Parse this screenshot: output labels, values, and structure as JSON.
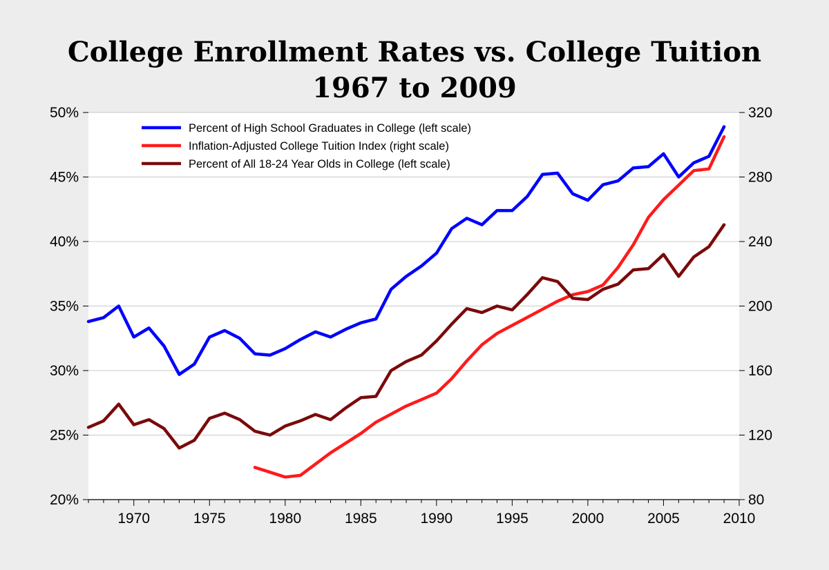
{
  "chart_data": {
    "type": "line",
    "title": "College Enrollment Rates vs. College Tuition",
    "subtitle": "1967 to 2009",
    "xlabel": "",
    "ylabel_left": "",
    "ylabel_right": "",
    "xlim": [
      1967,
      2010
    ],
    "ylim_left": [
      20,
      50
    ],
    "ylim_right": [
      80,
      320
    ],
    "x_ticks": [
      1970,
      1975,
      1980,
      1985,
      1990,
      1995,
      2000,
      2005,
      2010
    ],
    "y_left_ticks": [
      20,
      25,
      30,
      35,
      40,
      45,
      50
    ],
    "y_left_tick_labels": [
      "20%",
      "25%",
      "30%",
      "35%",
      "40%",
      "45%",
      "50%"
    ],
    "y_right_ticks": [
      80,
      120,
      160,
      200,
      240,
      280,
      320
    ],
    "y_right_tick_labels": [
      "80",
      "120",
      "160",
      "200",
      "240",
      "280",
      "320"
    ],
    "grid": "horizontal",
    "legend_position": "top-left",
    "series": [
      {
        "name": "Percent of High School Graduates in College (left scale)",
        "axis": "left",
        "color": "#0000ff",
        "x": [
          1967,
          1968,
          1969,
          1970,
          1971,
          1972,
          1973,
          1974,
          1975,
          1976,
          1977,
          1978,
          1979,
          1980,
          1981,
          1982,
          1983,
          1984,
          1985,
          1986,
          1987,
          1988,
          1989,
          1990,
          1991,
          1992,
          1993,
          1994,
          1995,
          1996,
          1997,
          1998,
          1999,
          2000,
          2001,
          2002,
          2003,
          2004,
          2005,
          2006,
          2007,
          2008,
          2009
        ],
        "y": [
          33.8,
          34.1,
          35.0,
          32.6,
          33.3,
          31.9,
          29.7,
          30.5,
          32.6,
          33.1,
          32.5,
          31.3,
          31.2,
          31.7,
          32.4,
          33.0,
          32.6,
          33.2,
          33.7,
          34.0,
          36.3,
          37.3,
          38.1,
          39.1,
          41.0,
          41.8,
          41.3,
          42.4,
          42.4,
          43.5,
          45.2,
          45.3,
          43.7,
          43.2,
          44.4,
          44.7,
          45.7,
          45.8,
          46.8,
          45.0,
          46.1,
          46.6,
          48.9
        ]
      },
      {
        "name": "Inflation-Adjusted College Tuition Index (right scale)",
        "axis": "right",
        "color": "#ff1a1a",
        "x": [
          1978,
          1979,
          1980,
          1981,
          1982,
          1983,
          1984,
          1985,
          1986,
          1987,
          1988,
          1989,
          1990,
          1991,
          1992,
          1993,
          1994,
          1995,
          1996,
          1997,
          1998,
          1999,
          2000,
          2001,
          2002,
          2003,
          2004,
          2005,
          2006,
          2007,
          2008,
          2009
        ],
        "y": [
          100,
          97,
          94,
          95,
          102,
          109,
          115,
          121,
          128,
          133,
          138,
          142,
          146,
          155,
          166,
          176,
          183,
          188,
          193,
          198,
          203,
          207,
          209,
          213,
          224,
          238,
          255,
          266,
          275,
          284,
          285,
          305
        ]
      },
      {
        "name": "Percent of All 18-24 Year Olds in College (left scale)",
        "axis": "left",
        "color": "#7a0a0a",
        "x": [
          1967,
          1968,
          1969,
          1970,
          1971,
          1972,
          1973,
          1974,
          1975,
          1976,
          1977,
          1978,
          1979,
          1980,
          1981,
          1982,
          1983,
          1984,
          1985,
          1986,
          1987,
          1988,
          1989,
          1990,
          1991,
          1992,
          1993,
          1994,
          1995,
          1996,
          1997,
          1998,
          1999,
          2000,
          2001,
          2002,
          2003,
          2004,
          2005,
          2006,
          2007,
          2008,
          2009
        ],
        "y": [
          25.6,
          26.1,
          27.4,
          25.8,
          26.2,
          25.5,
          24.0,
          24.6,
          26.3,
          26.7,
          26.2,
          25.3,
          25.0,
          25.7,
          26.1,
          26.6,
          26.2,
          27.1,
          27.9,
          28.0,
          30.0,
          30.7,
          31.2,
          32.3,
          33.6,
          34.8,
          34.5,
          35.0,
          34.7,
          35.9,
          37.2,
          36.9,
          35.6,
          35.5,
          36.3,
          36.7,
          37.8,
          37.9,
          39.0,
          37.3,
          38.8,
          39.6,
          41.3
        ]
      }
    ]
  }
}
